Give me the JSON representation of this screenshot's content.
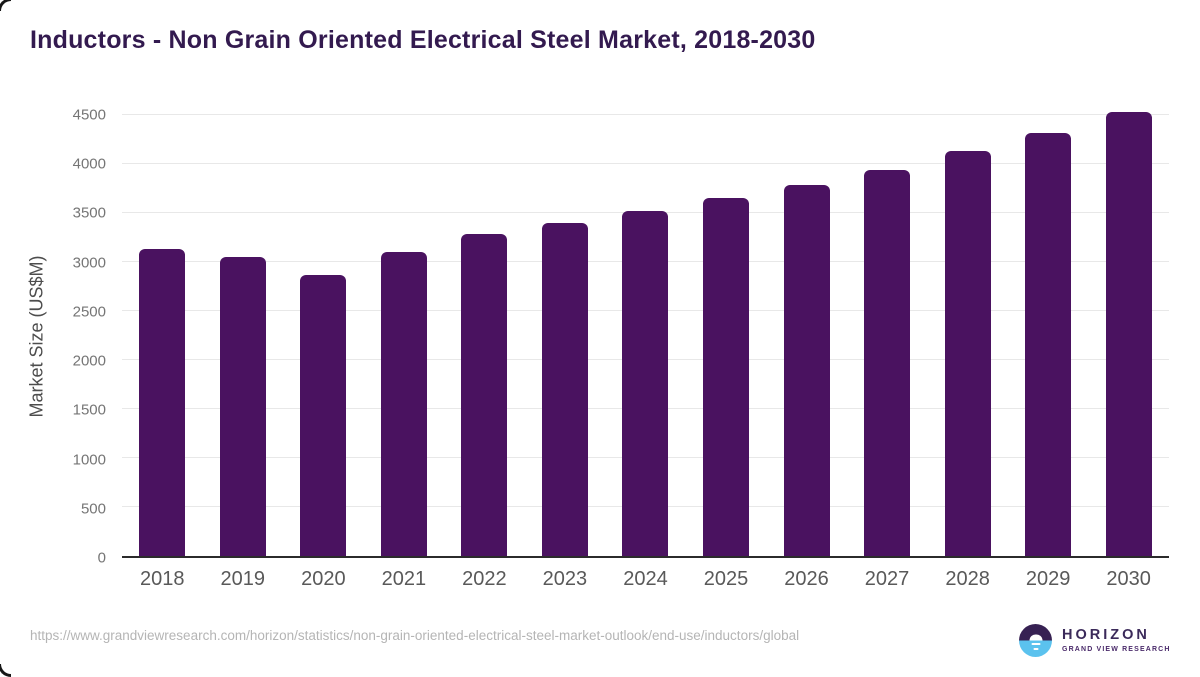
{
  "title": "Inductors - Non Grain Oriented Electrical Steel Market, 2018-2030",
  "source": {
    "url": "https://www.grandviewresearch.com/horizon/statistics/non-grain-oriented-electrical-steel-market-outlook/end-use/inductors/global"
  },
  "logo": {
    "name": "HORIZON",
    "subtitle": "GRAND VIEW RESEARCH"
  },
  "colors": {
    "bar": "#4a1260",
    "title": "#331a4f",
    "axis_line": "#2b2b2b",
    "gridline": "#e8e8e8",
    "y_tick": "#757575",
    "x_tick": "#595959",
    "url_text": "#b5b5b5",
    "logo_purple": "#372153",
    "logo_blue": "#5bc2ee"
  },
  "chart_data": {
    "type": "bar",
    "title": "Inductors - Non Grain Oriented Electrical Steel Market, 2018-2030",
    "categories": [
      "2018",
      "2019",
      "2020",
      "2021",
      "2022",
      "2023",
      "2024",
      "2025",
      "2026",
      "2027",
      "2028",
      "2029",
      "2030"
    ],
    "values": [
      3135,
      3055,
      2865,
      3100,
      3290,
      3400,
      3520,
      3655,
      3790,
      3940,
      4130,
      4320,
      4530
    ],
    "xlabel": "",
    "ylabel": "Market Size (US$M)",
    "ylim": [
      0,
      4500
    ],
    "ytick_step": 500,
    "grid": true,
    "legend": false,
    "bar_color": "#4a1260"
  }
}
